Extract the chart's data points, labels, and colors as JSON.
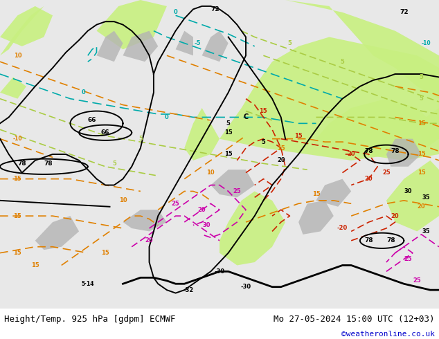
{
  "title_left": "Height/Temp. 925 hPa [gdpm] ECMWF",
  "title_right": "Mo 27-05-2024 15:00 UTC (12+03)",
  "credit": "©weatheronline.co.uk",
  "bg_color": "#ffffff",
  "footer_color": "#000000",
  "credit_color": "#0000cc",
  "fig_width": 6.34,
  "fig_height": 4.9,
  "dpi": 100,
  "green": "#c8f080",
  "gray_land": "#b4b4b4",
  "sea_bg": "#e8e8e8",
  "black": "#000000",
  "orange": "#e08000",
  "red": "#cc2200",
  "magenta": "#cc00aa",
  "cyan": "#00aaaa",
  "yellow_green": "#aacc44",
  "footer_font_size": 9,
  "credit_font_size": 8
}
